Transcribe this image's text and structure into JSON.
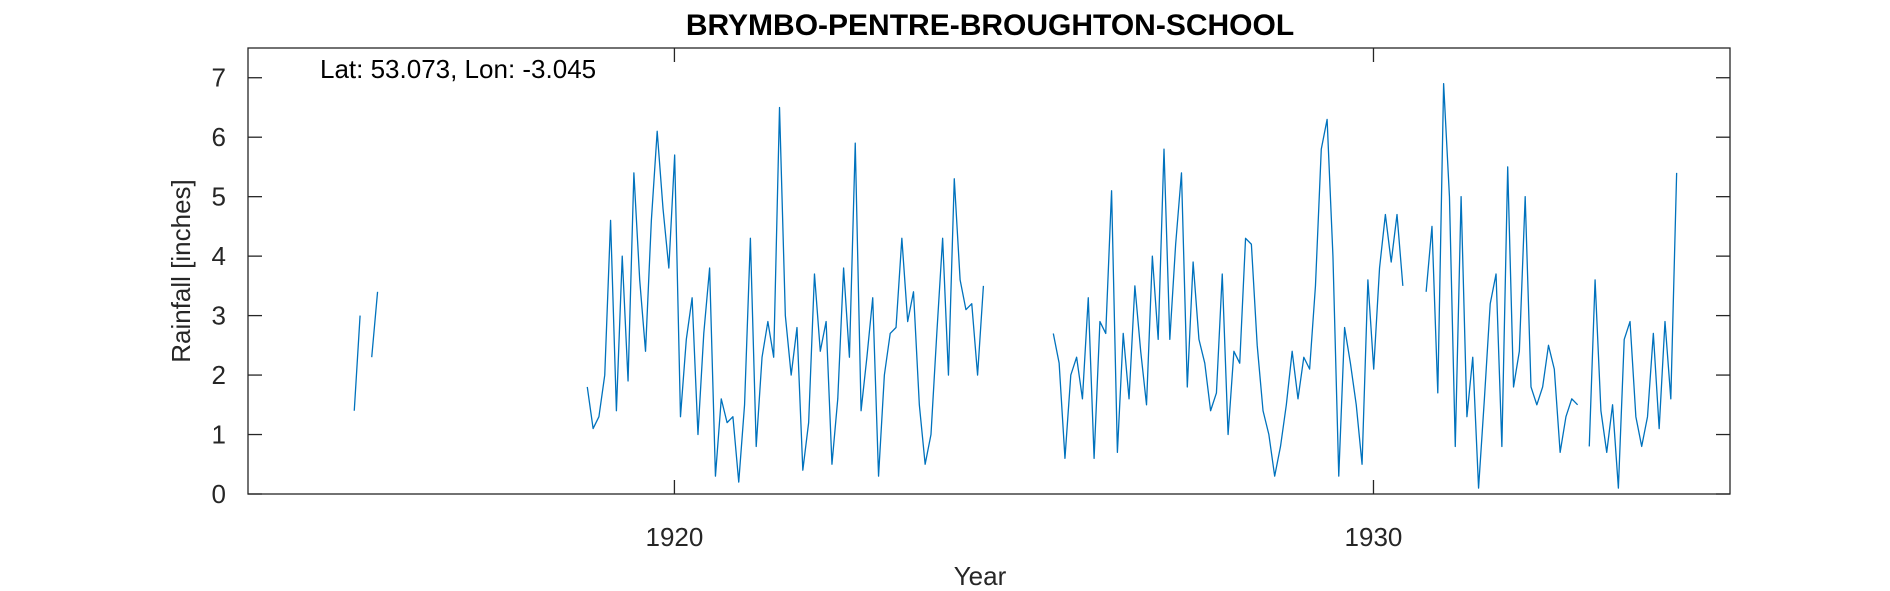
{
  "chart_data": {
    "type": "line",
    "title": "BRYMBO-PENTRE-BROUGHTON-SCHOOL",
    "xlabel": "Year",
    "ylabel": "Rainfall [inches]",
    "annotation": "Lat: 53.073, Lon: -3.045",
    "xlim": [
      1913.9,
      1935.1
    ],
    "ylim": [
      0,
      7.5
    ],
    "xticks": [
      1920,
      1930
    ],
    "yticks": [
      0,
      1,
      2,
      3,
      4,
      5,
      6,
      7
    ],
    "grid": false,
    "line_color": "#0072BD",
    "series": [
      {
        "x_start": 1915.42,
        "values": [
          1.4,
          3.0,
          null,
          2.3,
          3.4,
          null,
          null,
          null,
          null,
          null,
          null,
          null,
          null,
          null,
          null,
          null,
          null,
          null,
          null,
          null,
          null,
          null,
          null,
          null,
          null,
          null,
          null,
          null,
          null,
          null,
          null,
          null,
          null,
          null,
          null,
          null,
          null,
          null,
          null,
          null,
          1.8,
          1.1,
          1.3,
          2.0,
          4.6,
          1.4,
          4.0,
          1.9,
          5.4,
          3.6,
          2.4,
          4.6,
          6.1,
          4.8,
          3.8,
          5.7,
          1.3,
          2.6,
          3.3,
          1.0,
          2.7,
          3.8,
          0.3,
          1.6,
          1.2,
          1.3,
          0.2,
          1.5,
          4.3,
          0.8,
          2.3,
          2.9,
          2.3,
          6.5,
          3.0,
          2.0,
          2.8,
          0.4,
          1.2,
          3.7,
          2.4,
          2.9,
          0.5,
          1.6,
          3.8,
          2.3,
          5.9,
          1.4,
          2.3,
          3.3,
          0.3,
          2.0,
          2.7,
          2.8,
          4.3,
          2.9,
          3.4,
          1.5,
          0.5,
          1.0,
          2.7,
          4.3,
          2.0,
          5.3,
          3.6,
          3.1,
          3.2,
          2.0,
          3.5,
          null,
          null,
          null,
          null,
          null,
          null,
          null,
          null,
          null,
          null,
          null,
          2.7,
          2.2,
          0.6,
          2.0,
          2.3,
          1.6,
          3.3,
          0.6,
          2.9,
          2.7,
          5.1,
          0.7,
          2.7,
          1.6,
          3.5,
          2.4,
          1.5,
          4.0,
          2.6,
          5.8,
          2.6,
          4.2,
          5.4,
          1.8,
          3.9,
          2.6,
          2.2,
          1.4,
          1.7,
          3.7,
          1.0,
          2.4,
          2.2,
          4.3,
          4.2,
          2.5,
          1.4,
          1.0,
          0.3,
          0.8,
          1.5,
          2.4,
          1.6,
          2.3,
          2.1,
          3.5,
          5.8,
          6.3,
          4.0,
          0.3,
          2.8,
          2.2,
          1.5,
          0.5,
          3.6,
          2.1,
          3.8,
          4.7,
          3.9,
          4.7,
          3.5,
          null,
          null,
          null,
          3.4,
          4.5,
          1.7,
          6.9,
          5.0,
          0.8,
          5.0,
          1.3,
          2.3,
          0.1,
          1.6,
          3.2,
          3.7,
          0.8,
          5.5,
          1.8,
          2.4,
          5.0,
          1.8,
          1.5,
          1.8,
          2.5,
          2.1,
          0.7,
          1.3,
          1.6,
          1.5,
          null,
          0.8,
          3.6,
          1.4,
          0.7,
          1.5,
          0.1,
          2.6,
          2.9,
          1.3,
          0.8,
          1.3,
          2.7,
          1.1,
          2.9,
          1.6,
          5.4
        ]
      }
    ]
  }
}
